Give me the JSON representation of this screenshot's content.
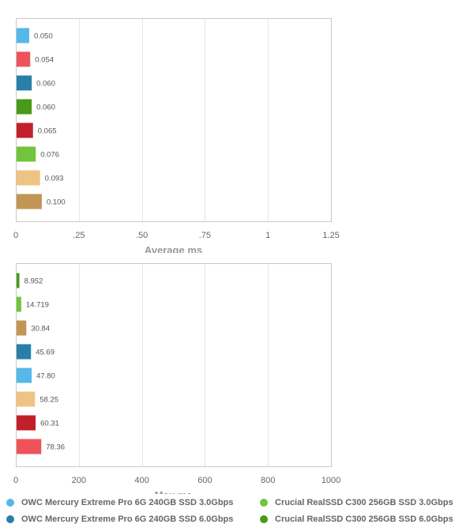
{
  "chart_data": [
    {
      "type": "bar",
      "orientation": "horizontal",
      "xlabel": "Average ms",
      "xlim": [
        0,
        1.25
      ],
      "ticks": [
        0,
        0.25,
        0.5,
        0.75,
        1,
        1.25
      ],
      "tick_labels": [
        "0",
        ".25",
        ".50",
        ".75",
        "1",
        "1.25"
      ],
      "grid": true,
      "bars": [
        {
          "value": 0.05,
          "label": "0.050",
          "color": "#55b8e8"
        },
        {
          "value": 0.054,
          "label": "0.054",
          "color": "#ee5359"
        },
        {
          "value": 0.06,
          "label": "0.060",
          "color": "#2a7fa9"
        },
        {
          "value": 0.06,
          "label": "0.060",
          "color": "#489b16"
        },
        {
          "value": 0.065,
          "label": "0.065",
          "color": "#c1202a"
        },
        {
          "value": 0.076,
          "label": "0.076",
          "color": "#71c43b"
        },
        {
          "value": 0.093,
          "label": "0.093",
          "color": "#efc383"
        },
        {
          "value": 0.1,
          "label": "0.100",
          "color": "#c19553"
        }
      ]
    },
    {
      "type": "bar",
      "orientation": "horizontal",
      "xlabel": "Max ms",
      "xlim": [
        0,
        1000
      ],
      "ticks": [
        0,
        200,
        400,
        600,
        800,
        1000
      ],
      "tick_labels": [
        "0",
        "200",
        "400",
        "600",
        "800",
        "1000"
      ],
      "grid": true,
      "bars": [
        {
          "value": 8.952,
          "label": "8.952",
          "color": "#489b16"
        },
        {
          "value": 14.719,
          "label": "14.719",
          "color": "#71c43b"
        },
        {
          "value": 30.84,
          "label": "30.84",
          "color": "#c19553"
        },
        {
          "value": 45.69,
          "label": "45.69",
          "color": "#2a7fa9"
        },
        {
          "value": 47.8,
          "label": "47.80",
          "color": "#55b8e8"
        },
        {
          "value": 58.25,
          "label": "58.25",
          "color": "#efc383"
        },
        {
          "value": 60.31,
          "label": "60.31",
          "color": "#c1202a"
        },
        {
          "value": 78.36,
          "label": "78.36",
          "color": "#ee5359"
        }
      ]
    }
  ],
  "legend": [
    {
      "name": "OWC Mercury Extreme Pro 6G 240GB SSD 3.0Gbps",
      "color": "#55b8e8"
    },
    {
      "name": "Crucial RealSSD C300 256GB SSD 3.0Gbps",
      "color": "#71c43b"
    },
    {
      "name": "OWC Mercury Extreme Pro 6G 240GB SSD 6.0Gbps",
      "color": "#2a7fa9"
    },
    {
      "name": "Crucial RealSSD C300 256GB SSD 6.0Gbps",
      "color": "#489b16"
    }
  ]
}
